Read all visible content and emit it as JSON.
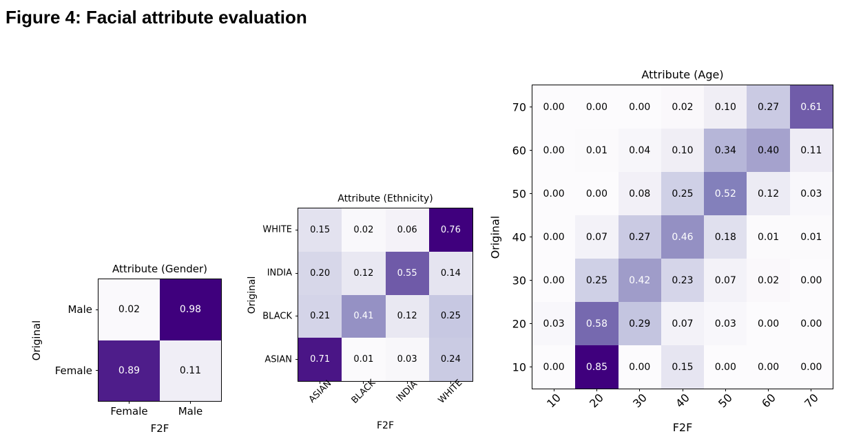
{
  "figure_title": "Figure 4: Facial attribute evaluation",
  "colors": {
    "background": "#ffffff",
    "axes_edge": "#000000",
    "cell_text_dark": "#000000",
    "cell_text_light": "#ffffff",
    "colormap_name": "Purples",
    "purples_stops": [
      "#fcfbfd",
      "#efedf5",
      "#dadaeb",
      "#bcbddc",
      "#9e9ac8",
      "#807dba",
      "#6a51a3",
      "#54278f",
      "#3f007d"
    ]
  },
  "chart_data": [
    {
      "type": "heatmap",
      "title": "Attribute (Gender)",
      "xlabel": "F2F",
      "ylabel": "Original",
      "x_tick_labels": [
        "Female",
        "Male"
      ],
      "y_tick_labels": [
        "Male",
        "Female"
      ],
      "x_tick_rotation": 0,
      "rows": [
        [
          0.02,
          0.98
        ],
        [
          0.89,
          0.11
        ]
      ],
      "vmin": 0,
      "vmax": 0.98,
      "white_text_above": 0.4,
      "value_decimals": 2
    },
    {
      "type": "heatmap",
      "title": "Attribute (Ethnicity)",
      "xlabel": "F2F",
      "ylabel": "Original",
      "x_tick_labels": [
        "ASIAN",
        "BLACK",
        "INDIA",
        "WHITE"
      ],
      "y_tick_labels": [
        "WHITE",
        "INDIA",
        "BLACK",
        "ASIAN"
      ],
      "x_tick_rotation": 45,
      "rows": [
        [
          0.15,
          0.02,
          0.06,
          0.76
        ],
        [
          0.2,
          0.12,
          0.55,
          0.14
        ],
        [
          0.21,
          0.41,
          0.12,
          0.25
        ],
        [
          0.71,
          0.01,
          0.03,
          0.24
        ]
      ],
      "vmin": 0,
      "vmax": 0.76,
      "white_text_above": 0.4,
      "value_decimals": 2
    },
    {
      "type": "heatmap",
      "title": "Attribute (Age)",
      "xlabel": "F2F",
      "ylabel": "Original",
      "x_tick_labels": [
        "10",
        "20",
        "30",
        "40",
        "50",
        "60",
        "70"
      ],
      "y_tick_labels": [
        "70",
        "60",
        "50",
        "40",
        "30",
        "20",
        "10"
      ],
      "x_tick_rotation": 45,
      "rows": [
        [
          0.0,
          0.0,
          0.0,
          0.02,
          0.1,
          0.27,
          0.61
        ],
        [
          0.0,
          0.01,
          0.04,
          0.1,
          0.34,
          0.4,
          0.11
        ],
        [
          0.0,
          0.0,
          0.08,
          0.25,
          0.52,
          0.12,
          0.03
        ],
        [
          0.0,
          0.07,
          0.27,
          0.46,
          0.18,
          0.01,
          0.01
        ],
        [
          0.0,
          0.25,
          0.42,
          0.23,
          0.07,
          0.02,
          0.0
        ],
        [
          0.03,
          0.58,
          0.29,
          0.07,
          0.03,
          0.0,
          0.0
        ],
        [
          0.0,
          0.85,
          0.0,
          0.15,
          0.0,
          0.0,
          0.0
        ]
      ],
      "vmin": 0,
      "vmax": 0.85,
      "white_text_above": 0.4,
      "value_decimals": 2
    }
  ]
}
